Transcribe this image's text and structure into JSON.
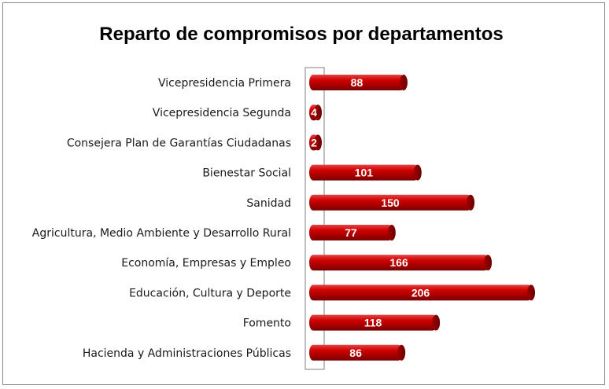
{
  "chart_data": {
    "type": "bar",
    "orientation": "horizontal",
    "title": "Reparto de compromisos por departamentos",
    "categories": [
      "Vicepresidencia Primera",
      "Vicepresidencia Segunda",
      "Consejera Plan de Garantías Ciudadanas",
      "Bienestar Social",
      "Sanidad",
      "Agricultura, Medio Ambiente y Desarrollo Rural",
      "Economía, Empresas y Empleo",
      "Educación, Cultura y Deporte",
      "Fomento",
      "Hacienda y Administraciones Públicas"
    ],
    "values": [
      88,
      4,
      2,
      101,
      150,
      77,
      166,
      206,
      118,
      86
    ],
    "data_labels": [
      "88",
      "4",
      "2",
      "101",
      "150",
      "77",
      "166",
      "206",
      "118",
      "86"
    ],
    "xlim": [
      0,
      206
    ],
    "grid": false,
    "legend": "none",
    "colors": {
      "bar": "#c00000",
      "bar_dark": "#7a0000",
      "bar_light": "#e23a3a"
    }
  }
}
